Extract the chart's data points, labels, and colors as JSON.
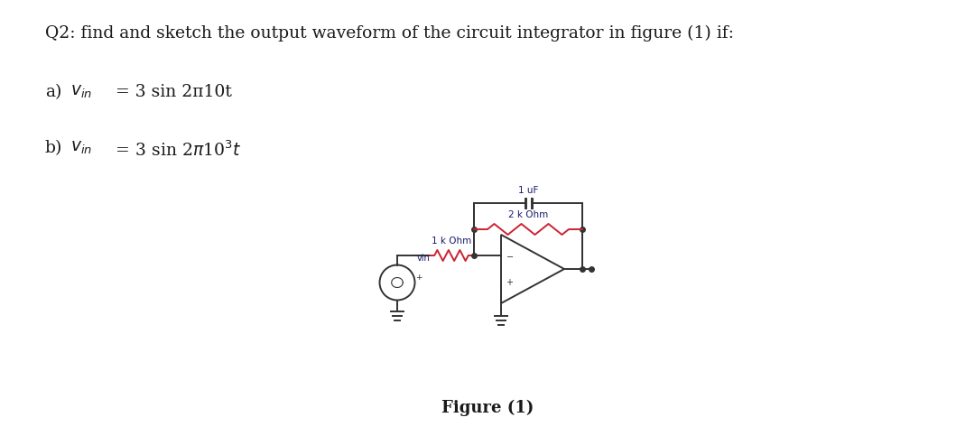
{
  "title": "Q2: find and sketch the output waveform of the circuit integrator in figure (1) if:",
  "eq_a_prefix": "a)",
  "eq_a_math": "$v_{in}$",
  "eq_a_suffix": " = 3 sin 2π10t",
  "eq_b_prefix": "b)",
  "eq_b_math": "$v_{in}$",
  "eq_b_suffix": " = 3 sin 2π10",
  "figure_caption": "Figure (1)",
  "cap_label": "1 uF",
  "r2_label": "2 k Ohm",
  "r1_label": "1 k Ohm",
  "vin_circle_label": "vin",
  "bg_color": "#ffffff",
  "text_color": "#1a1a1a",
  "circuit_color": "#333333",
  "resistor_color": "#cc2233",
  "wire_color": "#1a1a6e",
  "title_fontsize": 13.5,
  "body_fontsize": 13.5,
  "fig_caption_fontsize": 13,
  "label_fontsize": 7.5
}
